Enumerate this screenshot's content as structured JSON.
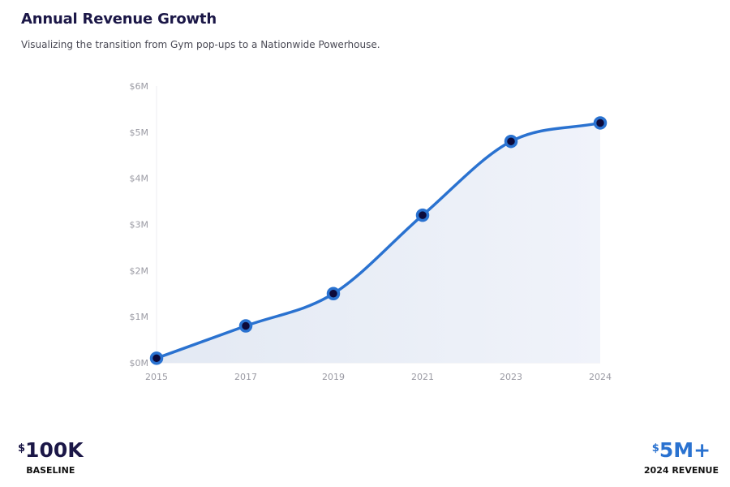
{
  "header": {
    "title": "Annual Revenue Growth",
    "subtitle": "Visualizing the transition from Gym pop-ups to a Nationwide Powerhouse."
  },
  "chart_data": {
    "type": "area",
    "x": [
      "2015",
      "2017",
      "2019",
      "2021",
      "2023",
      "2024"
    ],
    "series": [
      {
        "values": [
          0.1,
          0.8,
          1.5,
          3.2,
          4.8,
          5.2
        ]
      }
    ],
    "ylim": [
      0,
      6
    ],
    "yticks": [
      0,
      1,
      2,
      3,
      4,
      5,
      6
    ],
    "ytick_labels": [
      "$0M",
      "$1M",
      "$2M",
      "$3M",
      "$4M",
      "$5M",
      "$6M"
    ],
    "grid": false,
    "legend": "none",
    "colors": {
      "line": "#2a72d0",
      "marker_fill": "#0d0a3a",
      "area_light": "#e3e9f3",
      "area_dark": "#f0f3fa"
    }
  },
  "stats": {
    "baseline": {
      "currency": "$",
      "value": "100K",
      "label": "BASELINE",
      "color": "#1b1747"
    },
    "revenue": {
      "currency": "$",
      "value": "5M+",
      "label": "2024 REVENUE",
      "color": "#2a72d0"
    }
  }
}
